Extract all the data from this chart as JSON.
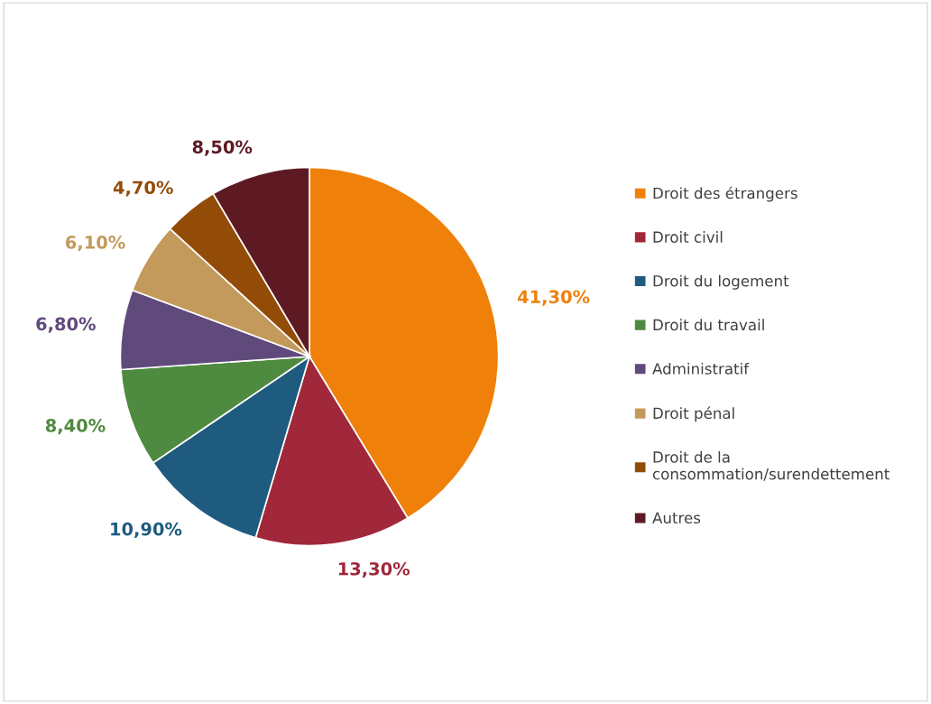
{
  "chart_data": {
    "type": "pie",
    "categories": [
      "Droit des étrangers",
      "Droit civil",
      "Droit du logement",
      "Droit du travail",
      "Administratif",
      "Droit pénal",
      "Droit de la consommation/surendettement",
      "Autres"
    ],
    "values": [
      41.3,
      13.3,
      10.9,
      8.4,
      6.8,
      6.1,
      4.7,
      8.5
    ],
    "value_labels": [
      "41,30%",
      "13,30%",
      "10,90%",
      "8,40%",
      "6,80%",
      "6,10%",
      "4,70%",
      "8,50%"
    ],
    "colors": [
      "#ef8009",
      "#a0283a",
      "#1f5b7e",
      "#4e8a3f",
      "#604a7b",
      "#c39a5c",
      "#934b08",
      "#5e1a23"
    ],
    "legend": "right"
  }
}
